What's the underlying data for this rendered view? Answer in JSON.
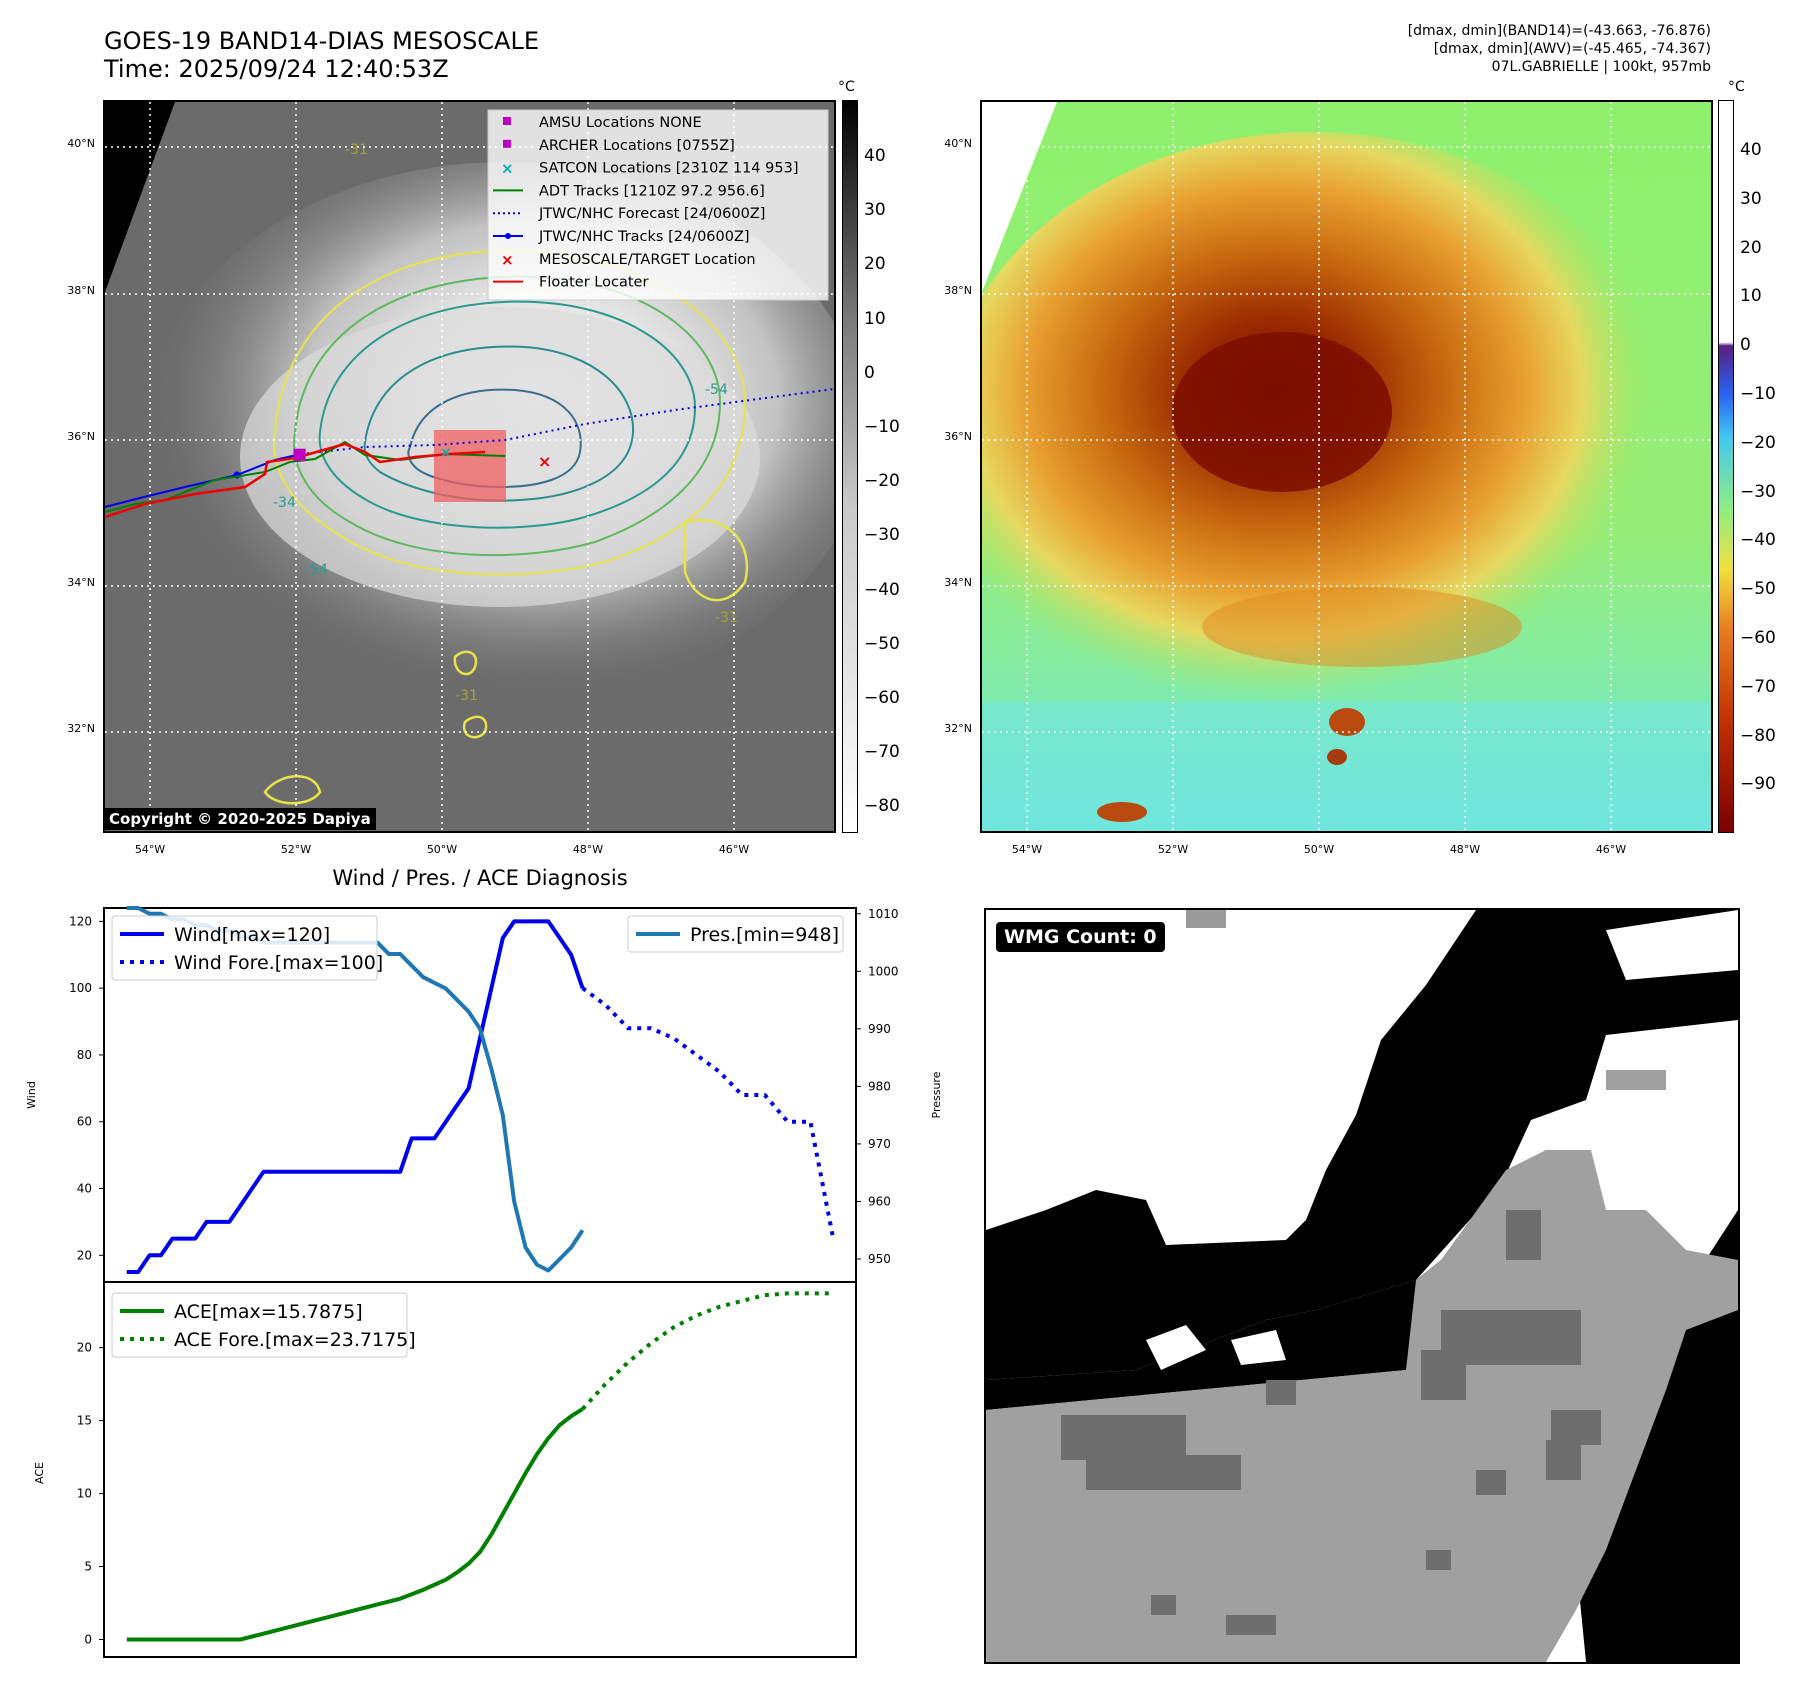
{
  "header": {
    "title_line1": "GOES-19 BAND14-DIAS MESOSCALE",
    "title_line2": "Time: 2025/09/24 12:40:53Z",
    "right_line1": "[dmax, dmin](BAND14)=(-43.663, -76.876)",
    "right_line2": "[dmax, dmin](AWV)=(-45.465, -74.367)",
    "right_line3": "07L.GABRIELLE | 100kt, 957mb"
  },
  "map_axes": {
    "lat_labels": [
      "40°N",
      "38°N",
      "36°N",
      "34°N",
      "32°N"
    ],
    "lon_labels": [
      "54°W",
      "52°W",
      "50°W",
      "48°W",
      "46°W"
    ]
  },
  "colorbar_left": {
    "unit": "°C",
    "ticks": [
      "40",
      "30",
      "20",
      "10",
      "0",
      "−10",
      "−20",
      "−30",
      "−40",
      "−50",
      "−60",
      "−70",
      "−80"
    ]
  },
  "colorbar_right": {
    "unit": "°C",
    "ticks": [
      "40",
      "30",
      "20",
      "10",
      "0",
      "−10",
      "−20",
      "−30",
      "−40",
      "−50",
      "−60",
      "−70",
      "−80",
      "−90"
    ]
  },
  "legend": [
    {
      "label": "AMSU Locations NONE",
      "color": "#c000c0",
      "marker": "square"
    },
    {
      "label": "ARCHER Locations [0755Z]",
      "color": "#c000c0",
      "marker": "square"
    },
    {
      "label": "SATCON Locations [2310Z 114 953]",
      "color": "#00b0b0",
      "marker": "x"
    },
    {
      "label": "ADT Tracks [1210Z 97.2 956.6]",
      "color": "#008000",
      "marker": "line"
    },
    {
      "label": "JTWC/NHC Forecast [24/0600Z]",
      "color": "#0000ee",
      "marker": "dotted"
    },
    {
      "label": "JTWC/NHC Tracks [24/0600Z]",
      "color": "#0000ee",
      "marker": "line-dot"
    },
    {
      "label": "MESOSCALE/TARGET Location",
      "color": "#ee0000",
      "marker": "x"
    },
    {
      "label": "Floater Locater",
      "color": "#ee0000",
      "marker": "line"
    }
  ],
  "contour_labels": [
    "-54",
    "-54",
    "-31",
    "-31",
    "-34",
    "-31"
  ],
  "copyright": "Copyright © 2020-2025 Dapiya",
  "wmg_label": "WMG Count: 0",
  "chart_data": [
    {
      "type": "line",
      "title": "Wind / Pres. / ACE Diagnosis",
      "ylabel": "Wind",
      "ylabel_right": "Pressure",
      "ylim": [
        12,
        124
      ],
      "ylim_right": [
        946,
        1011
      ],
      "yticks": [
        20,
        40,
        60,
        80,
        100,
        120
      ],
      "yticks_right": [
        950,
        960,
        970,
        980,
        990,
        1000,
        1010
      ],
      "series": [
        {
          "name": "Wind[max=120]",
          "style": "solid",
          "color": "#0000ee",
          "x": [
            0,
            1,
            2,
            3,
            4,
            5,
            6,
            7,
            8,
            9,
            10,
            11,
            12,
            13,
            14,
            15,
            16,
            17,
            18,
            19,
            20,
            21,
            22,
            23,
            24,
            25,
            26,
            27,
            28,
            29,
            30,
            31,
            32,
            33,
            34,
            35,
            36,
            37,
            38,
            39,
            40
          ],
          "values": [
            15,
            15,
            20,
            20,
            25,
            25,
            25,
            30,
            30,
            30,
            35,
            40,
            45,
            45,
            45,
            45,
            45,
            45,
            45,
            45,
            45,
            45,
            45,
            45,
            45,
            55,
            55,
            55,
            60,
            65,
            70,
            85,
            100,
            115,
            120,
            120,
            120,
            120,
            115,
            110,
            100
          ]
        },
        {
          "name": "Wind Fore.[max=100]",
          "style": "dotted",
          "color": "#0000ee",
          "x": [
            40,
            42,
            44,
            46,
            48,
            50,
            52,
            54,
            56,
            58,
            60,
            62
          ],
          "values": [
            100,
            95,
            88,
            88,
            85,
            80,
            75,
            68,
            68,
            60,
            60,
            25
          ]
        },
        {
          "name": "Pres.[min=948]",
          "style": "solid",
          "color": "#1f77b4",
          "axis": "right",
          "x": [
            0,
            1,
            2,
            3,
            4,
            5,
            6,
            7,
            8,
            9,
            10,
            11,
            12,
            13,
            14,
            15,
            16,
            17,
            18,
            19,
            20,
            21,
            22,
            23,
            24,
            25,
            26,
            27,
            28,
            29,
            30,
            31,
            32,
            33,
            34,
            35,
            36,
            37,
            38,
            39,
            40
          ],
          "values": [
            1011,
            1011,
            1010,
            1010,
            1009,
            1009,
            1008,
            1008,
            1007,
            1007,
            1006,
            1006,
            1005,
            1005,
            1005,
            1005,
            1005,
            1005,
            1005,
            1005,
            1005,
            1005,
            1005,
            1003,
            1003,
            1001,
            999,
            998,
            997,
            995,
            993,
            990,
            983,
            975,
            960,
            952,
            949,
            948,
            950,
            952,
            955
          ]
        }
      ]
    },
    {
      "type": "line",
      "ylabel": "ACE",
      "ylim": [
        -1.2,
        24.5
      ],
      "yticks": [
        0,
        5,
        10,
        15,
        20
      ],
      "series": [
        {
          "name": "ACE[max=15.7875]",
          "style": "solid",
          "color": "#008000",
          "x": [
            0,
            10,
            12,
            14,
            16,
            18,
            20,
            22,
            24,
            26,
            28,
            29,
            30,
            31,
            32,
            33,
            34,
            35,
            36,
            37,
            38,
            39,
            40
          ],
          "values": [
            0,
            0,
            0.4,
            0.8,
            1.2,
            1.6,
            2.0,
            2.4,
            2.8,
            3.4,
            4.1,
            4.6,
            5.2,
            6.0,
            7.2,
            8.6,
            10.0,
            11.4,
            12.7,
            13.8,
            14.7,
            15.3,
            15.79
          ]
        },
        {
          "name": "ACE Fore.[max=23.7175]",
          "style": "dotted",
          "color": "#008000",
          "x": [
            40,
            42,
            44,
            46,
            48,
            50,
            52,
            54,
            56,
            58,
            60,
            62
          ],
          "values": [
            15.79,
            17.5,
            19.0,
            20.3,
            21.4,
            22.2,
            22.8,
            23.2,
            23.6,
            23.72,
            23.72,
            23.72
          ]
        }
      ]
    }
  ]
}
